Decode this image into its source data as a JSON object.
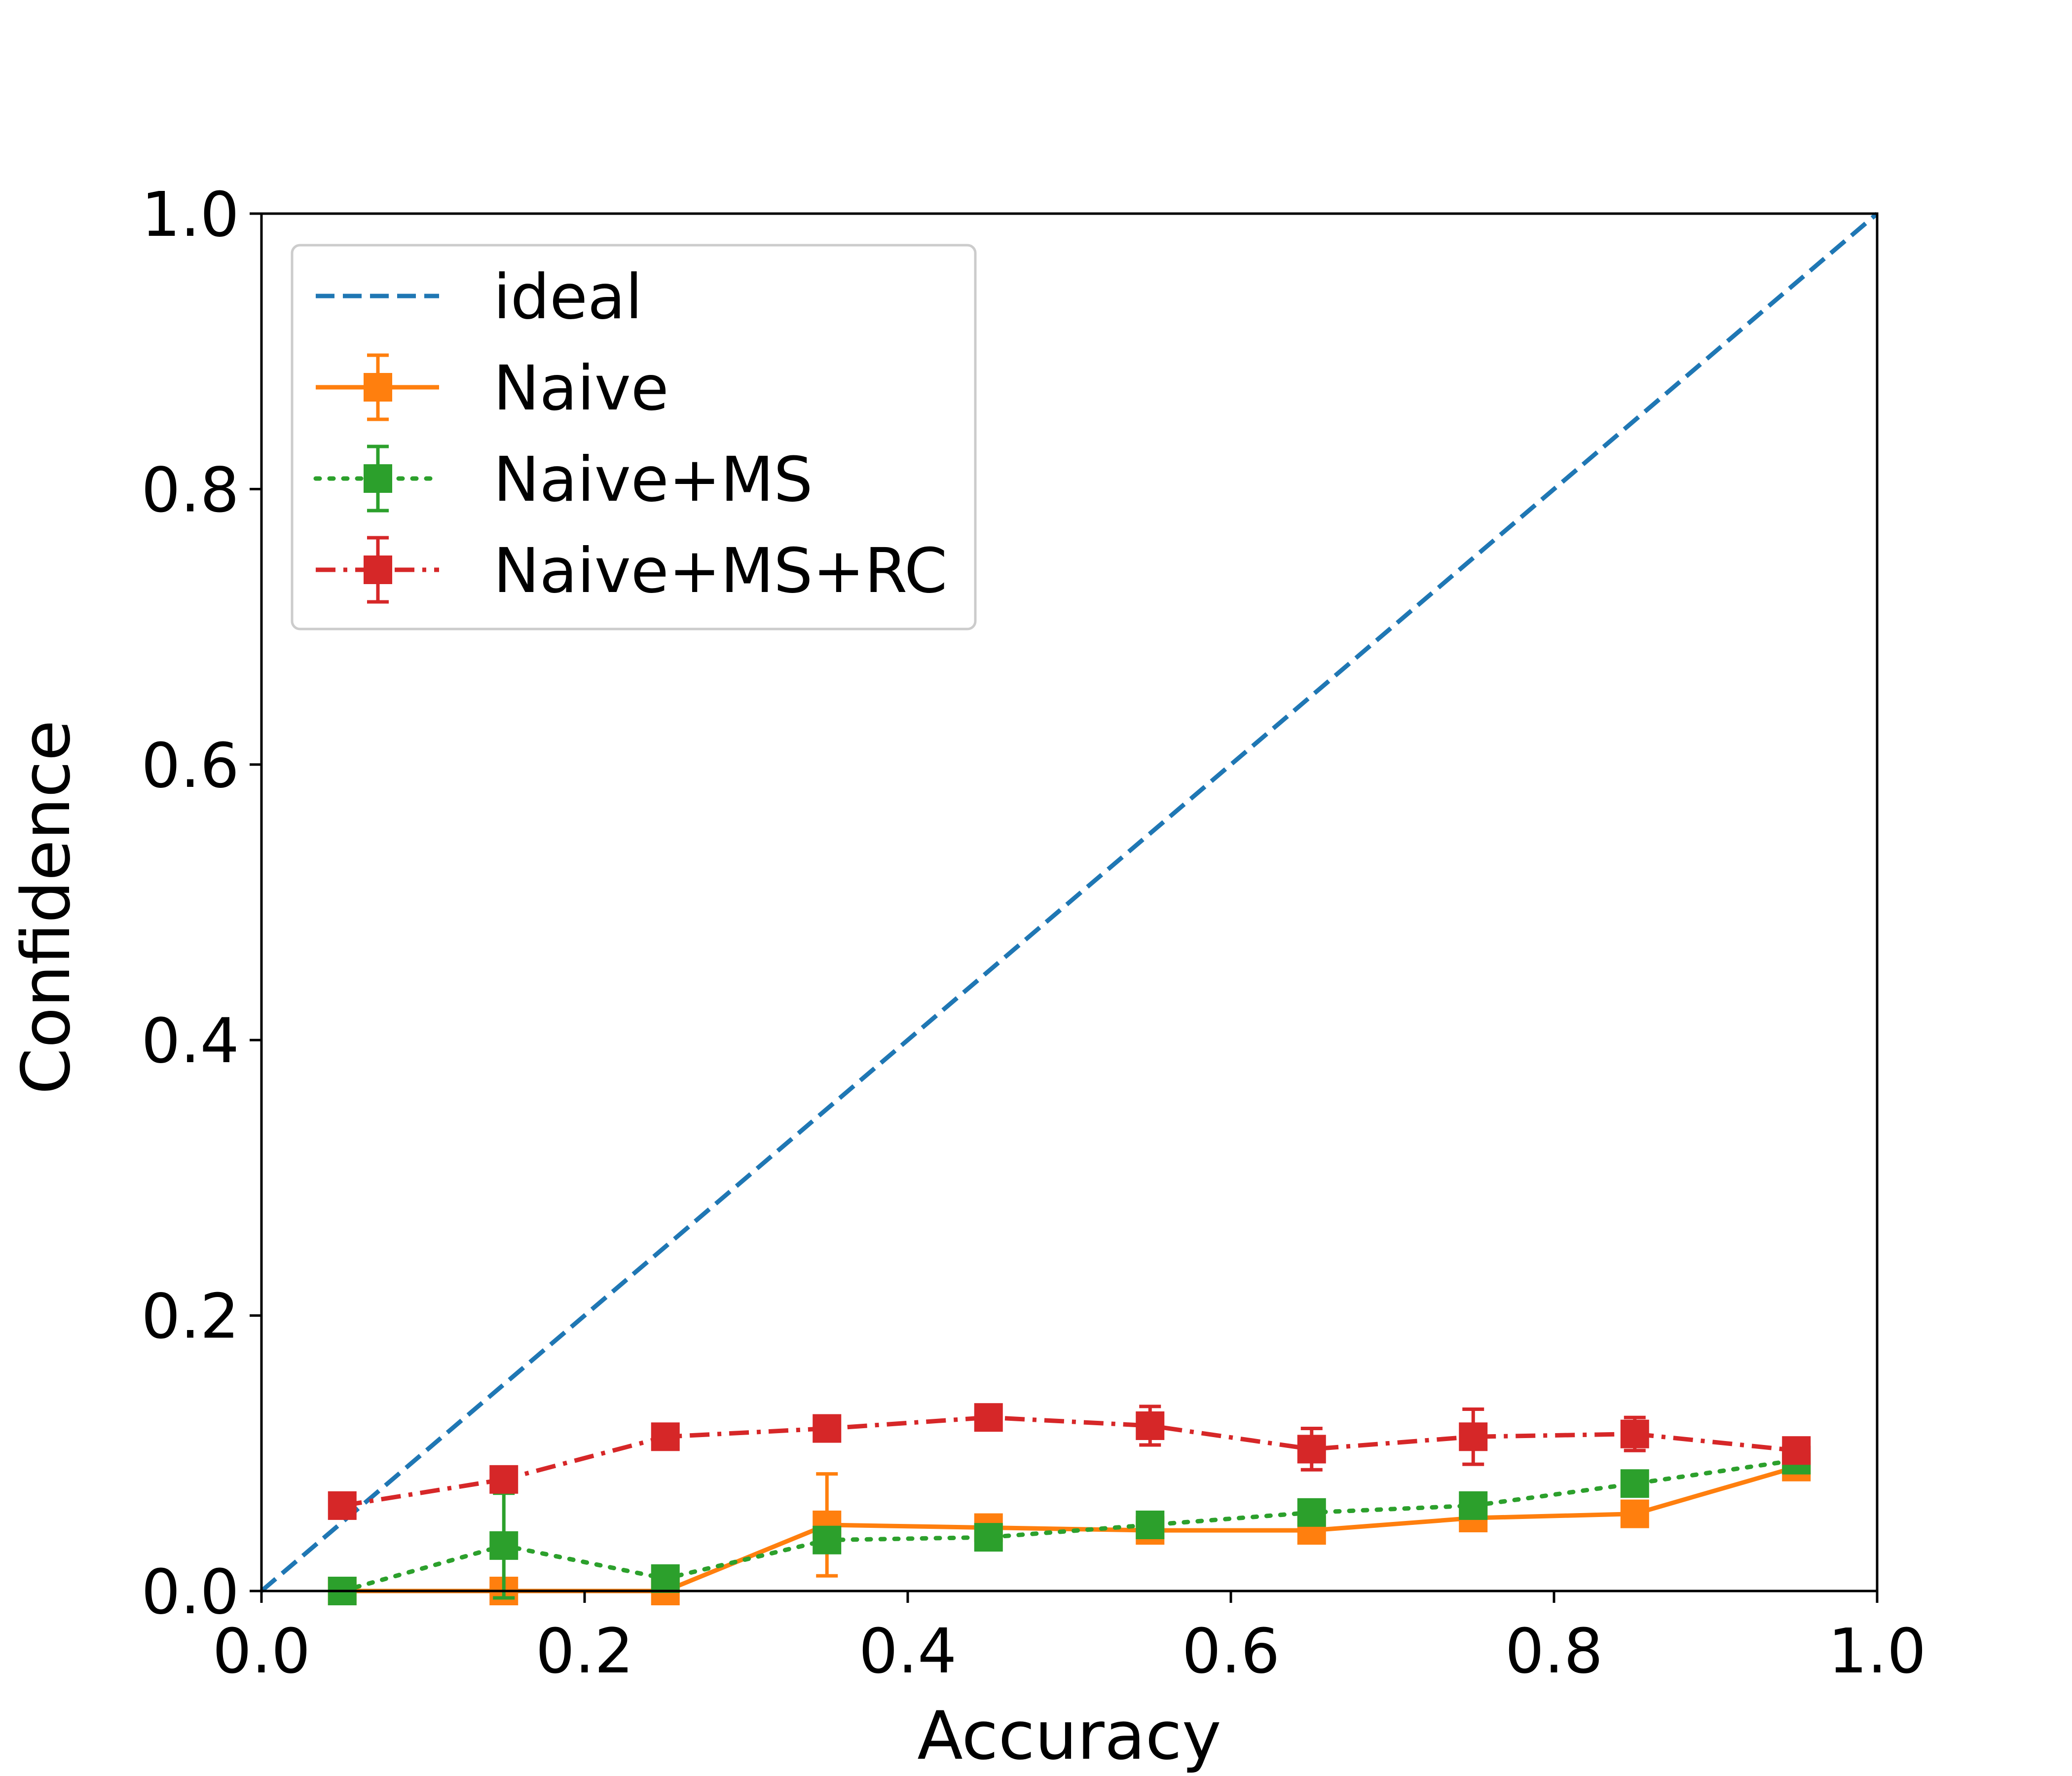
{
  "chart_data": {
    "type": "line",
    "title": "",
    "xlabel": "Accuracy",
    "ylabel": "Confidence",
    "xlim": [
      0.0,
      1.0
    ],
    "ylim": [
      0.0,
      1.0
    ],
    "grid": false,
    "legend_placement": "upper-left",
    "xticks": [
      "0.0",
      "0.2",
      "0.4",
      "0.6",
      "0.8",
      "1.0"
    ],
    "yticks": [
      "0.0",
      "0.2",
      "0.4",
      "0.6",
      "0.8",
      "1.0"
    ],
    "x": [
      0.05,
      0.15,
      0.25,
      0.35,
      0.45,
      0.55,
      0.65,
      0.75,
      0.85,
      0.95
    ],
    "ideal": {
      "name": "ideal",
      "color": "#1f77b4",
      "x": [
        0.0,
        1.0
      ],
      "y": [
        0.0,
        1.0
      ]
    },
    "series": [
      {
        "name": "Naive",
        "color": "#ff7f0e",
        "style": "solid",
        "values": [
          0.0,
          0.0,
          0.0,
          0.048,
          0.046,
          0.044,
          0.044,
          0.053,
          0.056,
          0.09
        ],
        "errors": [
          0.0,
          0.0,
          0.0,
          0.037,
          0.004,
          0.004,
          0.004,
          0.004,
          0.004,
          0.004
        ]
      },
      {
        "name": "Naive+MS",
        "color": "#2ca02c",
        "style": "dotted",
        "values": [
          0.0,
          0.033,
          0.009,
          0.037,
          0.039,
          0.048,
          0.057,
          0.062,
          0.078,
          0.095
        ],
        "errors": [
          0.0,
          0.038,
          0.005,
          0.004,
          0.004,
          0.004,
          0.004,
          0.004,
          0.004,
          0.004
        ]
      },
      {
        "name": "Naive+MS+RC",
        "color": "#d62728",
        "style": "dashdot",
        "values": [
          0.062,
          0.081,
          0.112,
          0.118,
          0.126,
          0.12,
          0.103,
          0.112,
          0.114,
          0.102
        ],
        "errors": [
          0.004,
          0.004,
          0.004,
          0.004,
          0.008,
          0.014,
          0.015,
          0.02,
          0.012,
          0.004
        ]
      }
    ]
  }
}
